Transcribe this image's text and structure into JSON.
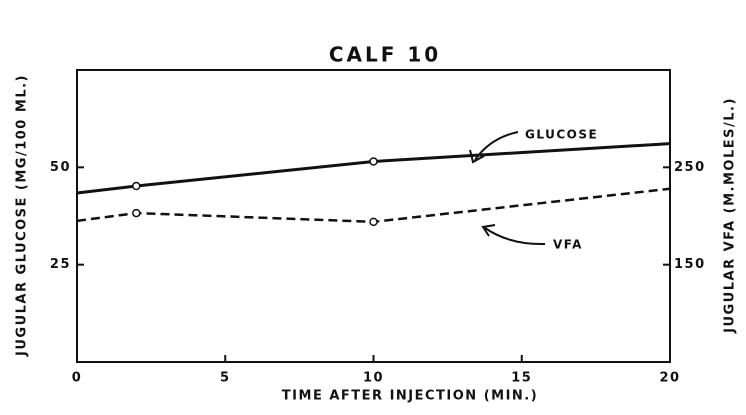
{
  "chart_data": {
    "type": "line",
    "title": "CALF 10",
    "x_label": "TIME AFTER INJECTION (MIN.)",
    "y_label": "JUGULAR GLUCOSE (MG/100 ML.)",
    "y2_label": "JUGULAR VFA (M.MOLES/L.)",
    "xlim": [
      0,
      20
    ],
    "xticks": [
      0,
      5,
      10,
      15,
      20
    ],
    "ylim": [
      0,
      75
    ],
    "yticks": [
      25,
      50
    ],
    "y2lim": [
      50,
      350
    ],
    "y2ticks": [
      150,
      250
    ],
    "series": [
      {
        "name": "GLUCOSE",
        "color": "#111111",
        "dash": false,
        "x": [
          0,
          2,
          10,
          20
        ],
        "values": [
          43.4,
          45.2,
          51.5,
          56.1
        ]
      },
      {
        "name": "VFA",
        "color": "#111111",
        "dash": true,
        "axis": "y2",
        "x": [
          0,
          2,
          10,
          20
        ],
        "values": [
          195,
          203,
          194,
          228
        ]
      }
    ]
  }
}
